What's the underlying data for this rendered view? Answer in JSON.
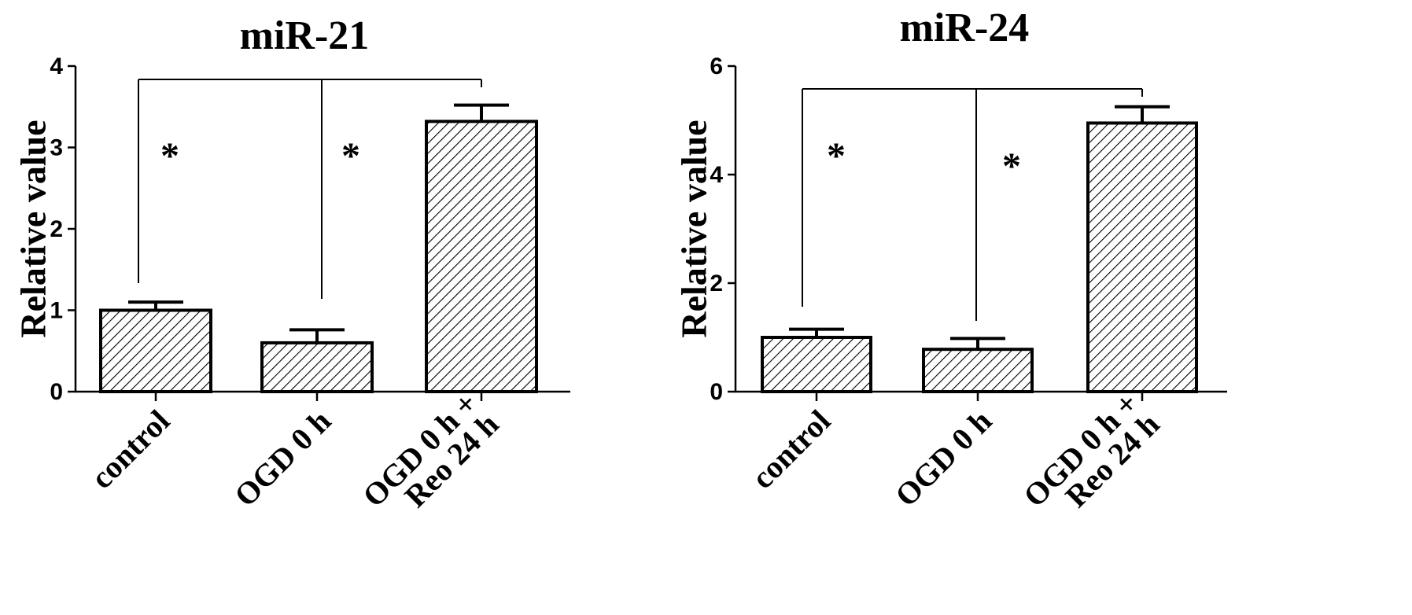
{
  "chart_data": [
    {
      "type": "bar",
      "title": "miR-21",
      "xlabel": "",
      "ylabel": "Relative value",
      "ylim": [
        0,
        4
      ],
      "yticks": [
        0,
        1,
        2,
        3,
        4
      ],
      "categories": [
        [
          "control"
        ],
        [
          "OGD 0 h"
        ],
        [
          "OGD 0 h +",
          "Reo 24 h"
        ]
      ],
      "values": [
        1.0,
        0.6,
        3.32
      ],
      "errors": [
        0.1,
        0.16,
        0.2
      ],
      "fill_pattern": "diagonal-hatch",
      "significance": [
        {
          "from": 0,
          "to": 2,
          "label": "*"
        },
        {
          "from": 1,
          "to": 2,
          "label": "*"
        }
      ]
    },
    {
      "type": "bar",
      "title": "miR-24",
      "xlabel": "",
      "ylabel": "Relative value",
      "ylim": [
        0,
        6
      ],
      "yticks": [
        0,
        2,
        4,
        6
      ],
      "categories": [
        [
          "control"
        ],
        [
          "OGD 0 h"
        ],
        [
          "OGD 0 h +",
          "Reo 24 h"
        ]
      ],
      "values": [
        1.0,
        0.78,
        4.95
      ],
      "errors": [
        0.15,
        0.2,
        0.3
      ],
      "fill_pattern": "diagonal-hatch",
      "significance": [
        {
          "from": 0,
          "to": 2,
          "label": "*"
        },
        {
          "from": 1,
          "to": 2,
          "label": "*"
        }
      ]
    }
  ],
  "colors": {
    "axis": "#000000",
    "bar_outline": "#000000",
    "hatch": "#000000",
    "background": "#ffffff"
  }
}
